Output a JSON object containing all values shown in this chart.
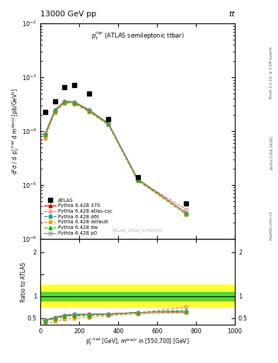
{
  "title_top": "13000 GeV pp",
  "title_right": "tt",
  "annotation": "$p_T^{top}$ (ATLAS semileptonic ttbar)",
  "watermark": "ATLAS_2019_I1750330",
  "rivet_label": "Rivet 3.1.10, ≥ 3.5M events",
  "arxiv_label": "[arXiv:1306.3436]",
  "mcplots_label": "mcplots.cern.ch",
  "ylabel_main": "d$^2\\sigma$ / d p$_T^{t,had}$ d m$^{tbar|t}$ [pb/GeV$^2$]",
  "ylabel_ratio": "Ratio to ATLAS",
  "xlabel": "p$_T^{t,had}$ [GeV], m$^{tbar|t}$ in [550,700] [GeV]",
  "xlim": [
    0,
    1000
  ],
  "ylim_main": [
    1e-06,
    0.01
  ],
  "ylim_ratio": [
    0.35,
    2.3
  ],
  "x_atlas": [
    25,
    75,
    125,
    175,
    250,
    350,
    500,
    750
  ],
  "y_atlas": [
    0.00023,
    0.00036,
    0.00065,
    0.00072,
    0.0005,
    0.00017,
    1.4e-05,
    4.5e-06
  ],
  "x_mc": [
    25,
    75,
    125,
    175,
    250,
    350,
    500,
    750
  ],
  "y_370": [
    9e-05,
    0.00025,
    0.00036,
    0.00035,
    0.00025,
    0.00014,
    1.3e-05,
    3e-06
  ],
  "y_atlascsc": [
    9e-05,
    0.00024,
    0.00035,
    0.00034,
    0.00024,
    0.000135,
    1.25e-05,
    3.5e-06
  ],
  "y_d6t": [
    8.5e-05,
    0.00024,
    0.00035,
    0.00034,
    0.00024,
    0.000135,
    1.25e-05,
    3e-06
  ],
  "y_default": [
    7.5e-05,
    0.00022,
    0.00033,
    0.00032,
    0.00023,
    0.00013,
    1.2e-05,
    2.8e-06
  ],
  "y_dw": [
    8.5e-05,
    0.00024,
    0.00035,
    0.00034,
    0.00024,
    0.000135,
    1.25e-05,
    3e-06
  ],
  "y_p0": [
    9e-05,
    0.00025,
    0.00036,
    0.00035,
    0.00025,
    0.00014,
    1.3e-05,
    3e-06
  ],
  "ratio_370": [
    0.46,
    0.52,
    0.57,
    0.59,
    0.59,
    0.6,
    0.63,
    0.65
  ],
  "ratio_atlascsc": [
    0.45,
    0.51,
    0.56,
    0.57,
    0.57,
    0.58,
    0.62,
    0.75
  ],
  "ratio_d6t": [
    0.44,
    0.5,
    0.55,
    0.56,
    0.57,
    0.59,
    0.63,
    0.65
  ],
  "ratio_default": [
    0.38,
    0.43,
    0.48,
    0.5,
    0.52,
    0.56,
    0.6,
    0.62
  ],
  "ratio_dw": [
    0.44,
    0.5,
    0.55,
    0.56,
    0.57,
    0.59,
    0.63,
    0.68
  ],
  "ratio_p0": [
    0.46,
    0.52,
    0.57,
    0.59,
    0.59,
    0.6,
    0.63,
    0.65
  ],
  "band_green_lo": 0.9,
  "band_green_hi": 1.1,
  "band_yellow_lo": 0.75,
  "band_yellow_hi": 1.25,
  "color_370": "#cc0000",
  "color_atlascsc": "#ff6666",
  "color_d6t": "#009999",
  "color_default": "#ff9900",
  "color_dw": "#00bb00",
  "color_p0": "#888888",
  "legend_entries": [
    "ATLAS",
    "Pythia 6.428 370",
    "Pythia 6.428 atlas-csc",
    "Pythia 6.428 d6t",
    "Pythia 6.428 default",
    "Pythia 6.428 dw",
    "Pythia 6.428 p0"
  ]
}
